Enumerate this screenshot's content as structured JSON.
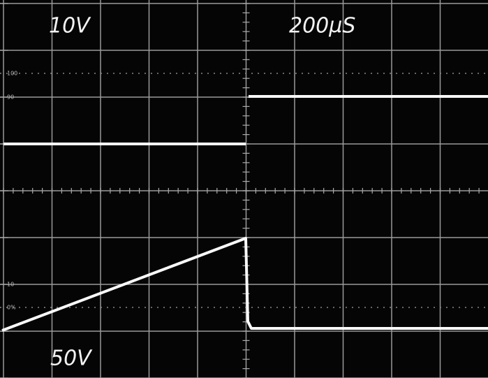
{
  "readouts": {
    "channel_1": "10V",
    "timebase": "200µS",
    "channel_2": "50V"
  },
  "graticule_labels": [
    "100",
    "90",
    "10",
    "0%"
  ]
}
